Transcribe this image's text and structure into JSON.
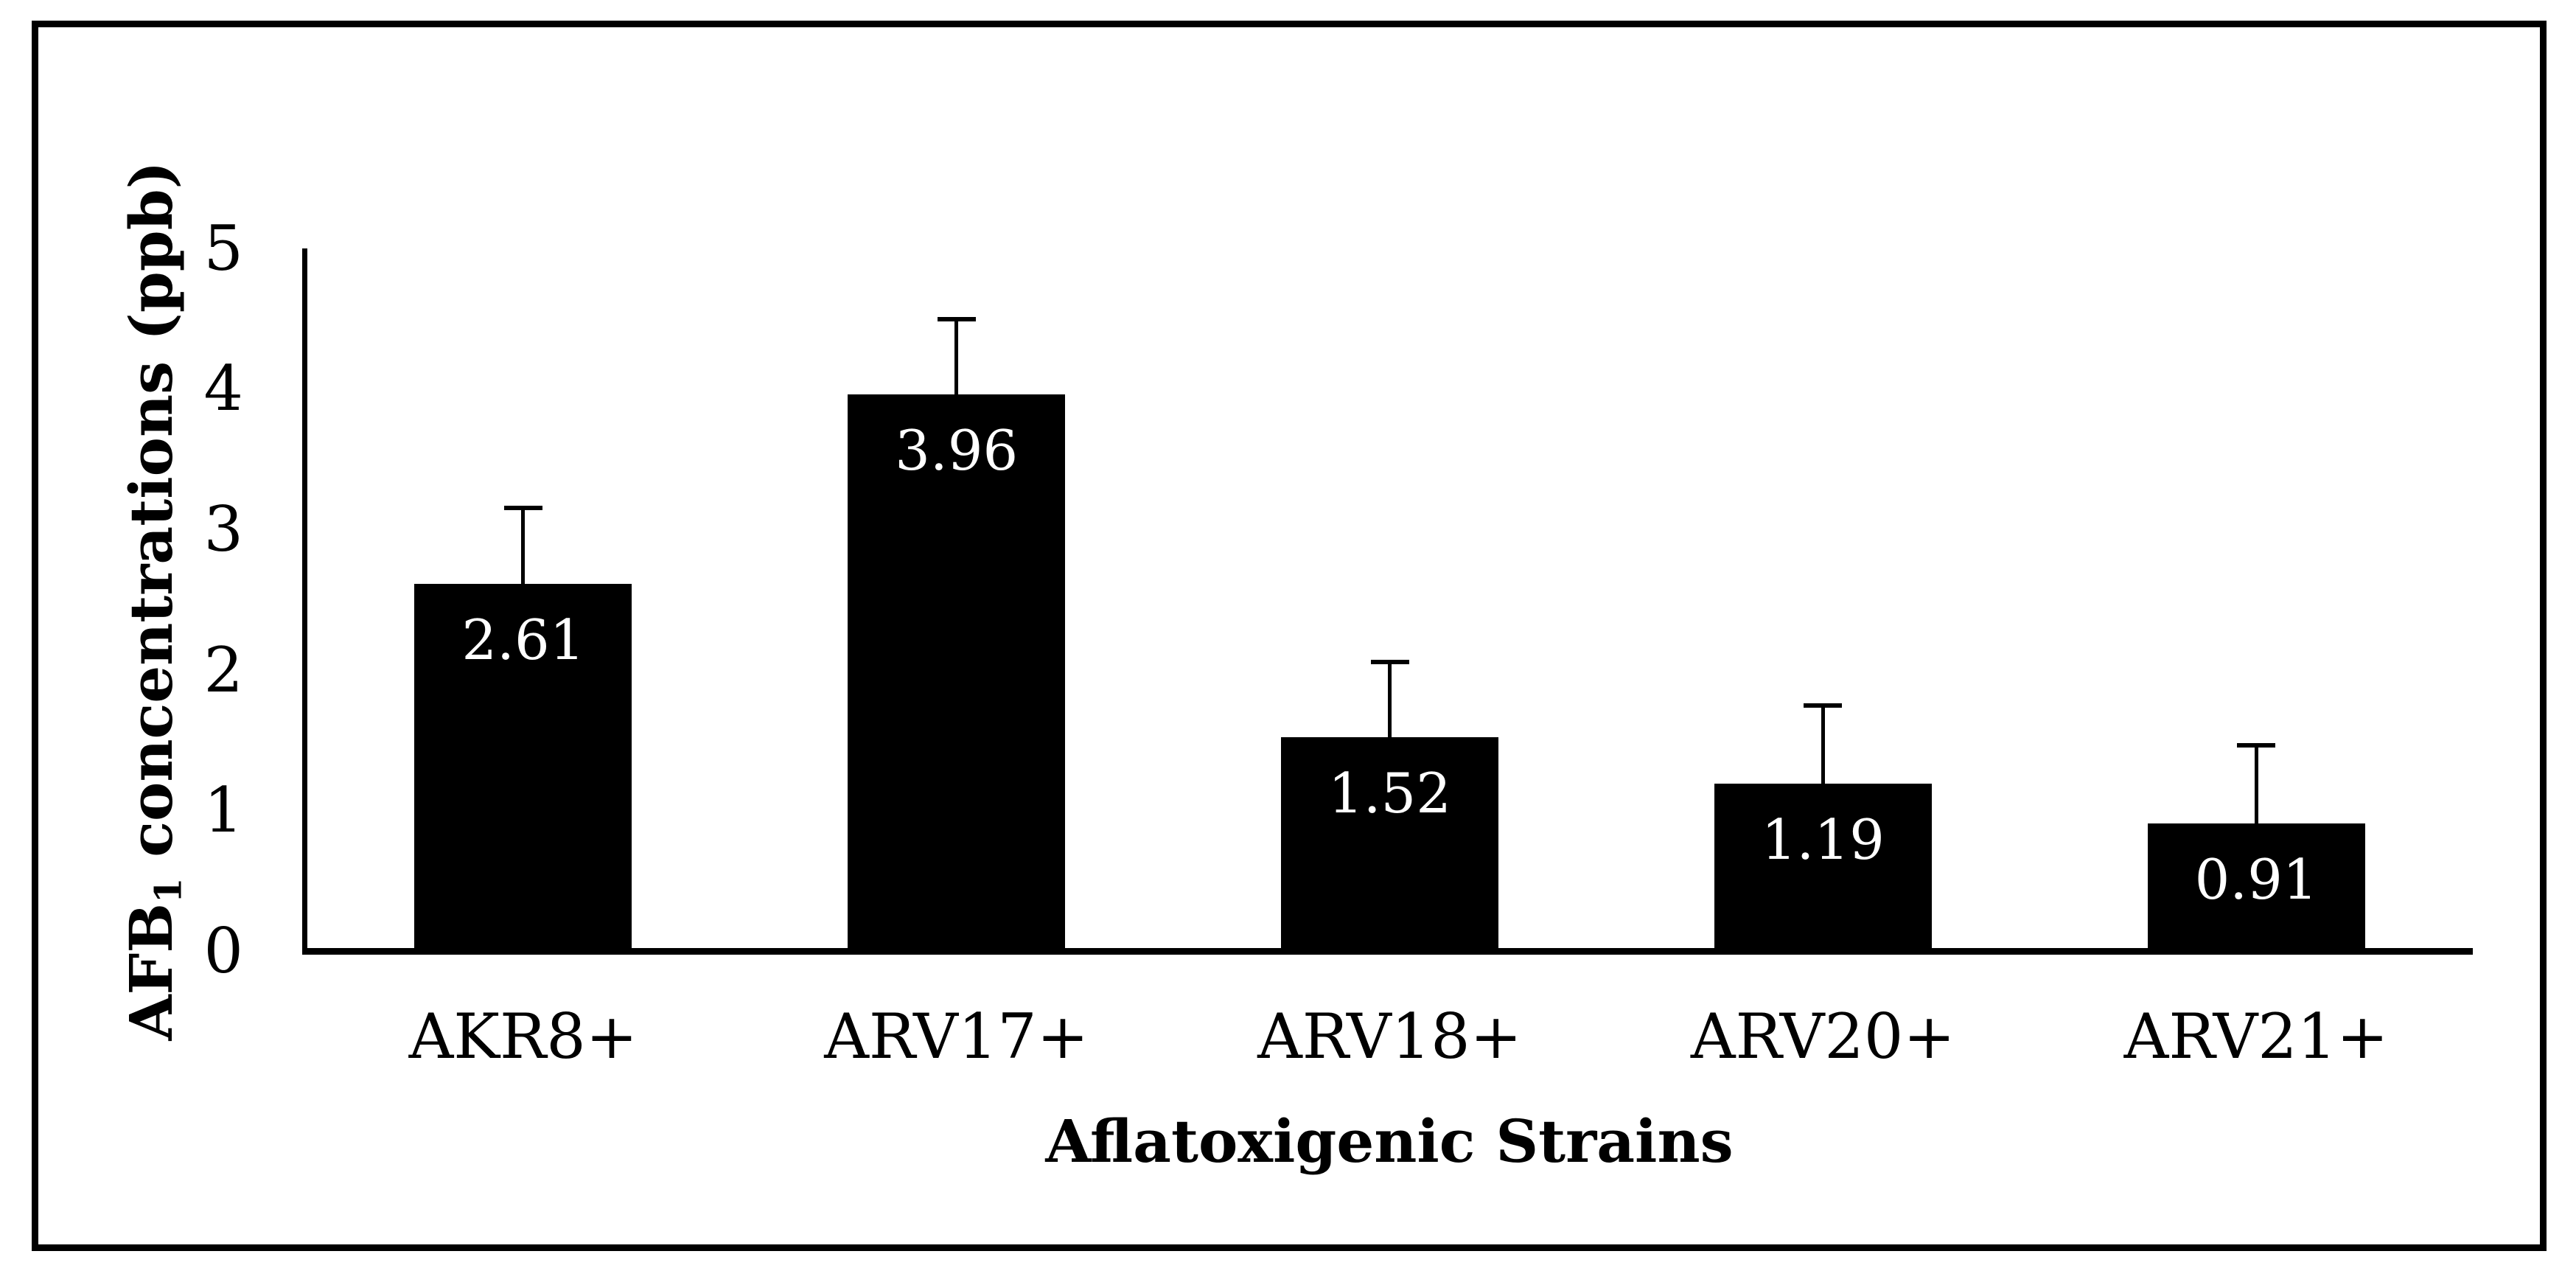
{
  "figure": {
    "background_color": "#ffffff",
    "frame_color": "#000000"
  },
  "chart_data": {
    "type": "bar",
    "title": "",
    "xlabel": "Aflatoxigenic Strains",
    "ylabel_base": "AFB",
    "ylabel_sub": "1",
    "ylabel_rest": " concentrations (ppb)",
    "ylabel_full": "AFB₁ concentrations (ppb)",
    "categories": [
      "AKR8+",
      "ARV17+",
      "ARV18+",
      "ARV20+",
      "ARV21+"
    ],
    "values": [
      2.61,
      3.96,
      1.52,
      1.19,
      0.91
    ],
    "value_labels": [
      "2.61",
      "3.96",
      "1.52",
      "1.19",
      "0.91"
    ],
    "errors_plus": [
      0.56,
      0.55,
      0.55,
      0.57,
      0.57
    ],
    "error_bar_direction": "plus-only",
    "ylim": [
      0,
      5
    ],
    "yticks": [
      0,
      1,
      2,
      3,
      4,
      5
    ],
    "grid": false,
    "legend": null,
    "bar_color": "#000000",
    "value_label_color": "#ffffff",
    "axis_color": "#000000"
  }
}
